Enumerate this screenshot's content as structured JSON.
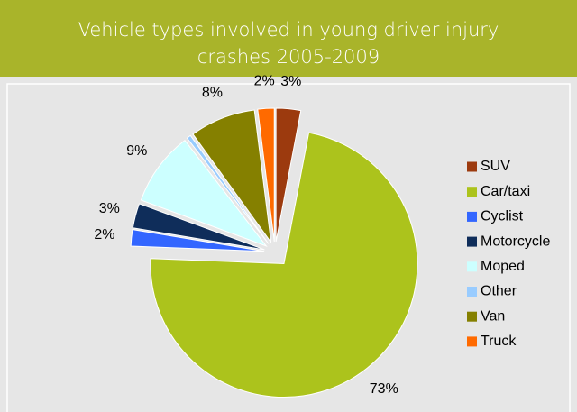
{
  "chart_data": {
    "type": "pie",
    "title": "Vehicle types involved in young driver injury crashes 2005-2009",
    "categories": [
      "SUV",
      "Car/taxi",
      "Cyclist",
      "Motorcycle",
      "Moped",
      "Other",
      "Van",
      "Truck"
    ],
    "values": [
      3,
      73,
      2,
      3,
      9,
      0.5,
      8,
      2
    ],
    "value_labels": [
      "3%",
      "73%",
      "2%",
      "3%",
      "9%",
      null,
      "8%",
      "2%"
    ],
    "colors": [
      "#9c3a0e",
      "#acc31c",
      "#3366ff",
      "#0f2d5a",
      "#ccffff",
      "#99ccff",
      "#858000",
      "#ff6a00"
    ],
    "legend": "right"
  }
}
